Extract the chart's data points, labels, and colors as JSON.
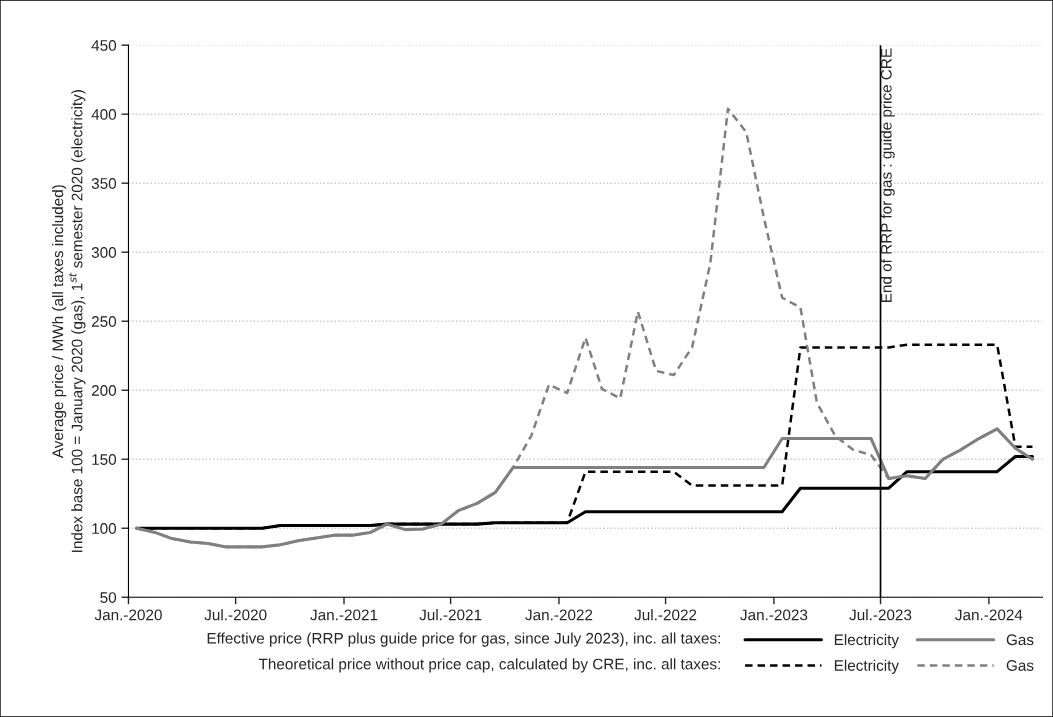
{
  "chart_data": {
    "type": "line",
    "ylabel": "Average price / MWh (all taxes included)\nIndex base 100 = January 2020 (gas), 1$^{st}$ semester 2020 (electricity)",
    "x": [
      "2020-01-15",
      "2020-02-15",
      "2020-03-15",
      "2020-04-15",
      "2020-05-15",
      "2020-06-15",
      "2020-07-15",
      "2020-08-15",
      "2020-09-15",
      "2020-10-15",
      "2020-11-15",
      "2020-12-15",
      "2021-01-15",
      "2021-02-15",
      "2021-03-15",
      "2021-04-15",
      "2021-05-15",
      "2021-06-15",
      "2021-07-15",
      "2021-08-15",
      "2021-09-15",
      "2021-10-15",
      "2021-11-15",
      "2021-12-15",
      "2022-01-15",
      "2022-02-15",
      "2022-03-15",
      "2022-04-15",
      "2022-05-15",
      "2022-06-15",
      "2022-07-15",
      "2022-08-15",
      "2022-09-15",
      "2022-10-15",
      "2022-11-15",
      "2022-12-15",
      "2023-01-15",
      "2023-02-15",
      "2023-03-15",
      "2023-04-15",
      "2023-05-15",
      "2023-06-15",
      "2023-07-15",
      "2023-08-15",
      "2023-09-15",
      "2023-10-15",
      "2023-11-15",
      "2023-12-15",
      "2024-01-15",
      "2024-02-15",
      "2024-03-15"
    ],
    "series": [
      {
        "name": "Electricity",
        "color": "#000000",
        "line_style": "solid",
        "values": [
          100,
          100,
          100,
          100,
          100,
          100,
          100,
          100,
          102,
          102,
          102,
          102,
          102,
          102,
          103,
          103,
          103,
          103,
          103,
          103,
          104,
          104,
          104,
          104,
          104,
          112,
          112,
          112,
          112,
          112,
          112,
          112,
          112,
          112,
          112,
          112,
          112,
          129,
          129,
          129,
          129,
          129,
          129,
          141,
          141,
          141,
          141,
          141,
          141,
          152,
          152
        ]
      },
      {
        "name": "Electricity",
        "color": "#000000",
        "line_style": "dashed",
        "values": [
          100,
          100,
          100,
          100,
          100,
          100,
          100,
          100,
          102,
          102,
          102,
          102,
          102,
          102,
          103,
          103,
          103,
          103,
          103,
          103,
          104,
          104,
          104,
          104,
          104,
          141,
          141,
          141,
          141,
          141,
          141,
          131,
          131,
          131,
          131,
          131,
          131,
          231,
          231,
          231,
          231,
          231,
          231,
          233,
          233,
          233,
          233,
          233,
          233,
          159,
          159
        ]
      },
      {
        "name": "Gas",
        "color": "#808080",
        "line_style": "solid",
        "values": [
          100,
          97,
          92.5,
          90,
          89,
          86.5,
          86.5,
          86.5,
          88,
          91,
          93,
          95,
          95,
          97,
          103,
          99,
          99.5,
          103,
          113,
          118,
          126,
          144,
          144,
          144,
          144,
          144,
          144,
          144,
          144,
          144,
          144,
          144,
          144,
          144,
          144,
          144,
          165,
          165,
          165,
          165,
          165,
          165,
          136,
          138,
          136,
          150,
          157,
          165,
          172,
          158,
          150
        ]
      },
      {
        "name": "Gas",
        "color": "#808080",
        "line_style": "dashed",
        "values": [
          100,
          97,
          92.5,
          90,
          89,
          86.5,
          86.5,
          86.5,
          88,
          91,
          93,
          95,
          95,
          97,
          103,
          99,
          99.5,
          103,
          113,
          118,
          126,
          144,
          167,
          204,
          198,
          238,
          201,
          194,
          257,
          214,
          211,
          231,
          292,
          404,
          387,
          325,
          267,
          260,
          191,
          167,
          157,
          153,
          136,
          138,
          136,
          150,
          157,
          165,
          172,
          158,
          150
        ]
      }
    ],
    "xlim": [
      "2020-01",
      "2024-04"
    ],
    "xticks": [
      {
        "value": "2020-01",
        "label": "Jan.-2020"
      },
      {
        "value": "2020-07",
        "label": "Jul.-2020"
      },
      {
        "value": "2021-01",
        "label": "Jan.-2021"
      },
      {
        "value": "2021-07",
        "label": "Jul.-2021"
      },
      {
        "value": "2022-01",
        "label": "Jan.-2022"
      },
      {
        "value": "2022-07",
        "label": "Jul.-2022"
      },
      {
        "value": "2023-01",
        "label": "Jan.-2023"
      },
      {
        "value": "2023-07",
        "label": "Jul.-2023"
      },
      {
        "value": "2024-01",
        "label": "Jan.-2024"
      }
    ],
    "ylim": [
      50,
      450
    ],
    "yticks": [
      50,
      100,
      150,
      200,
      250,
      300,
      350,
      400,
      450
    ],
    "grid": "y",
    "legend": "bottom right",
    "ref_lines": [
      {
        "axis": "x",
        "value": "2023-07",
        "label": "End of RRP for gas : guide price CRE",
        "color": "#000000",
        "line_style": "solid"
      }
    ],
    "annotations": [
      "Effective price (RRP plus guide price for gas, since July 2023), inc. all taxes:",
      "Theoretical price without price cap, calculated by CRE, inc. all taxes:"
    ]
  }
}
